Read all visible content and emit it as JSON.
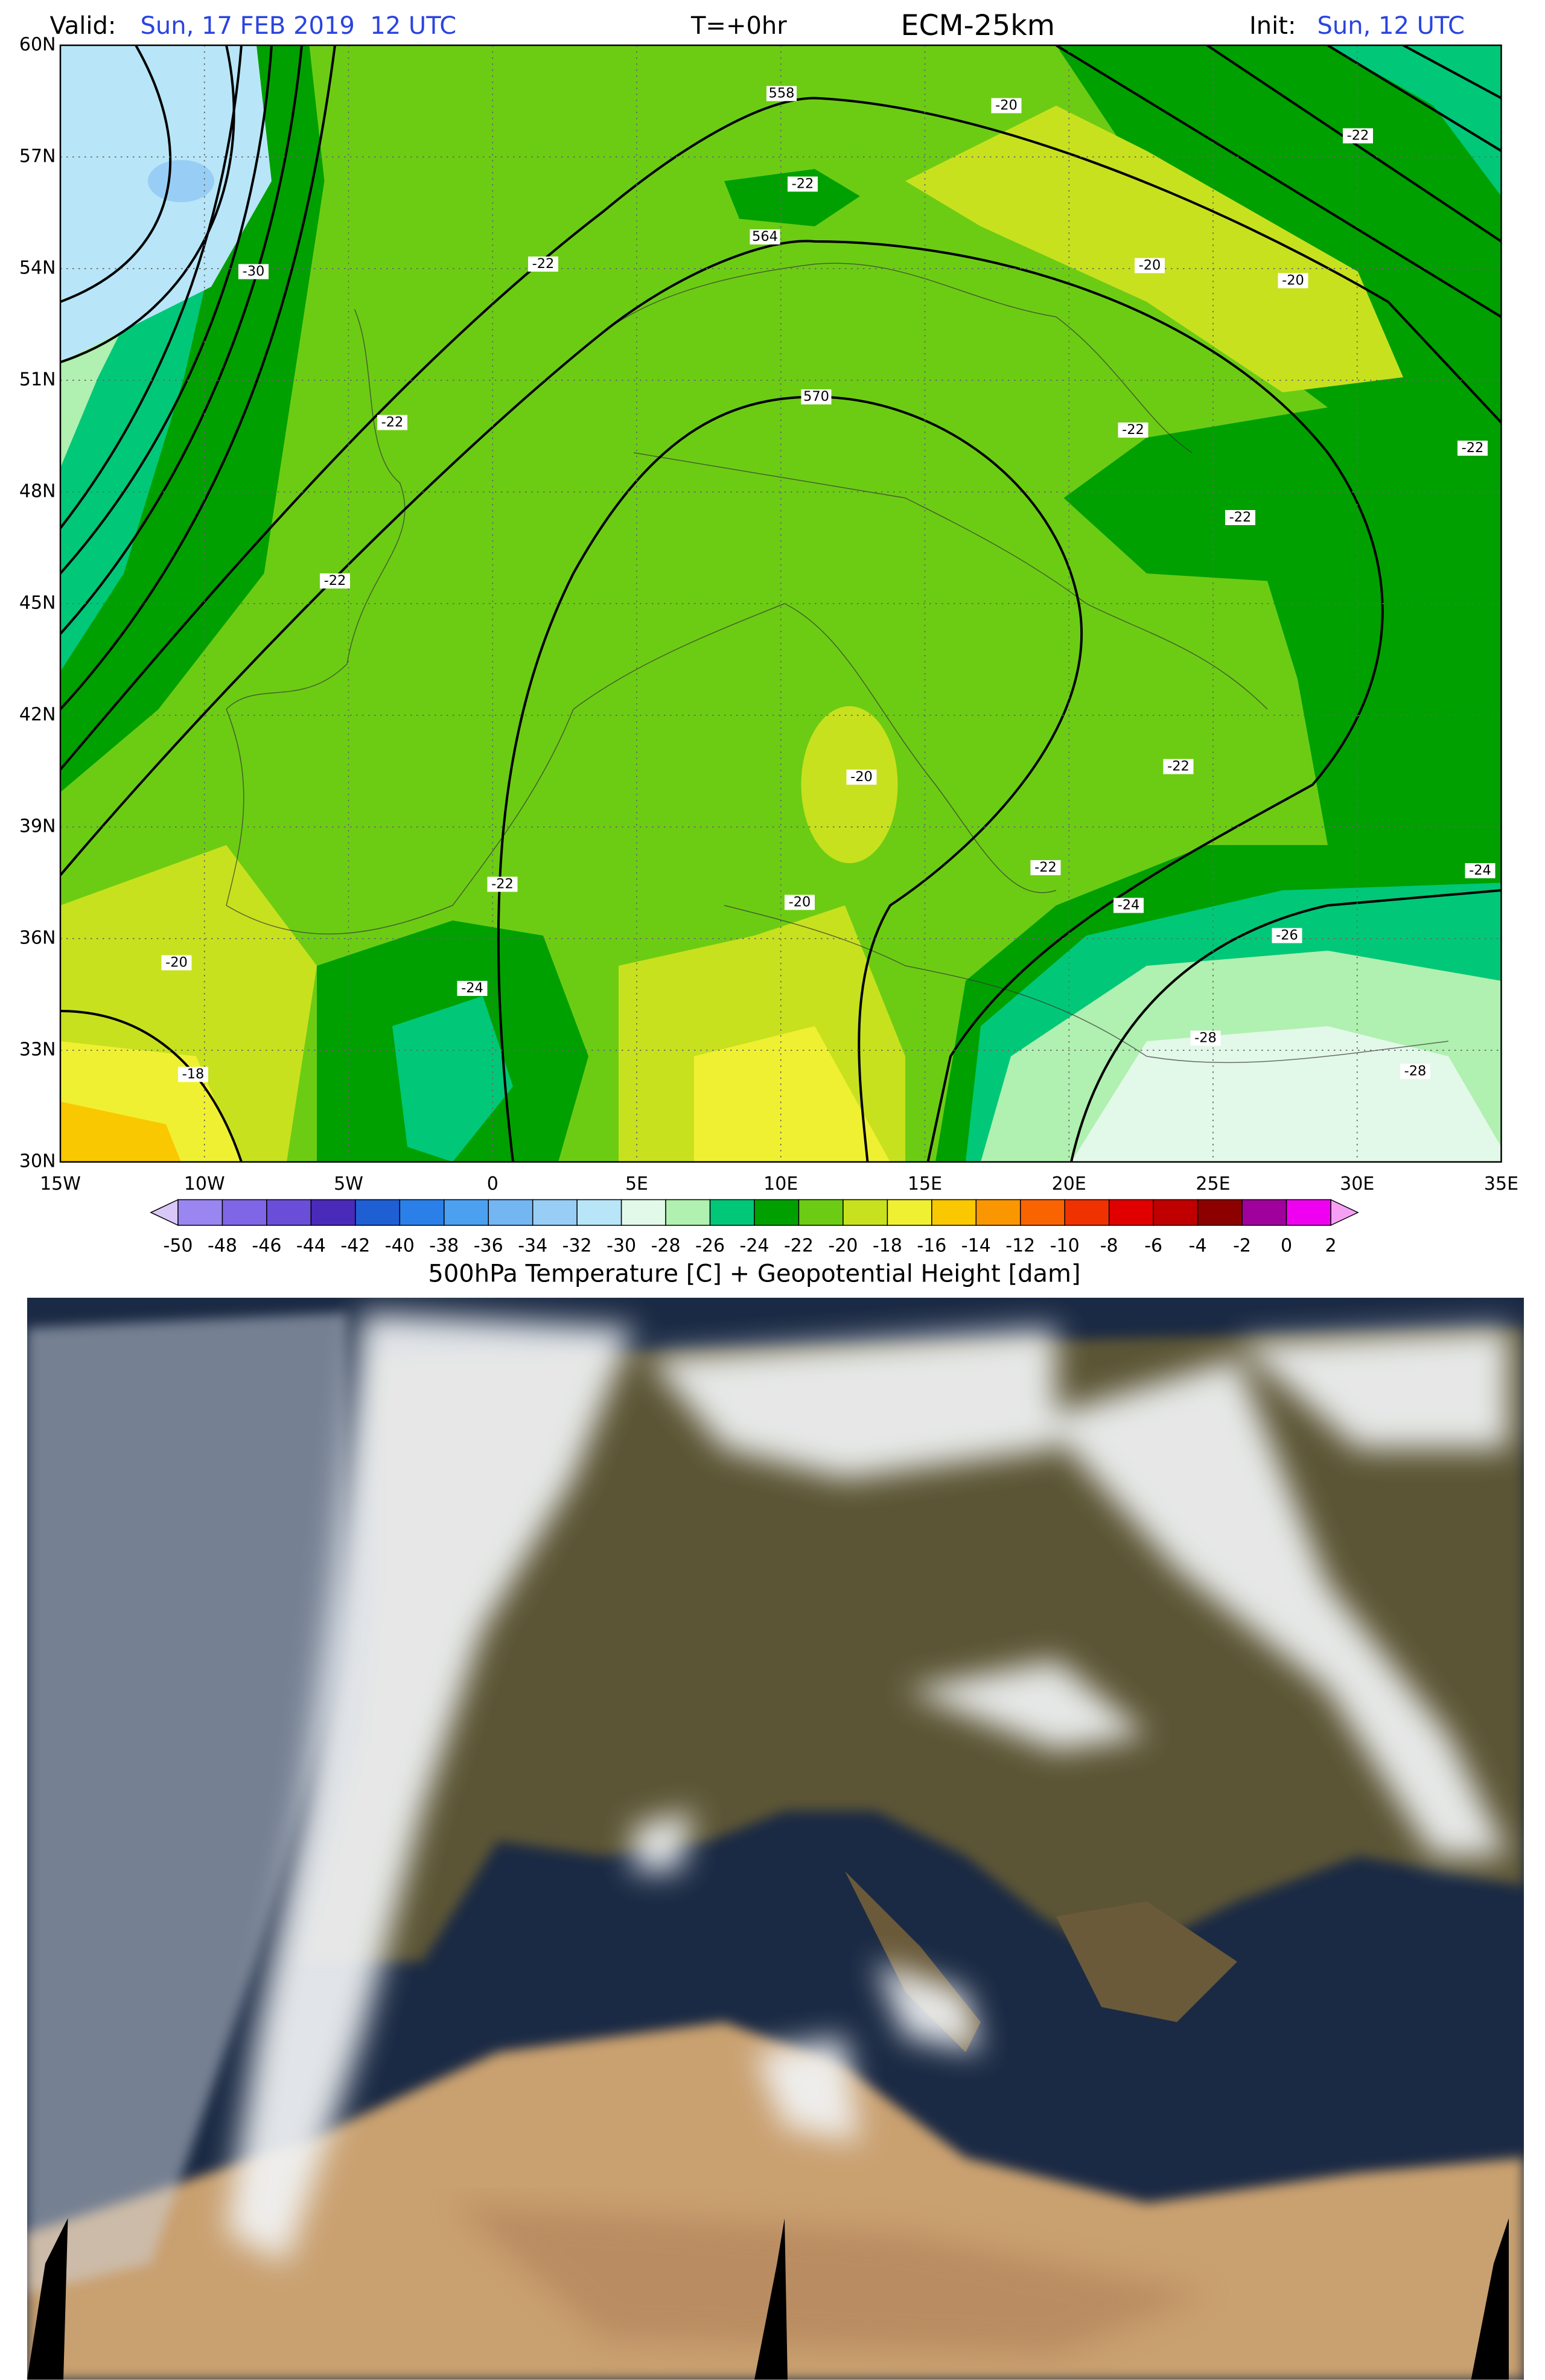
{
  "header": {
    "valid_label": "Valid:",
    "valid_time": "Sun, 17 FEB 2019  12 UTC",
    "step": "T=+0hr",
    "model": "ECM-25km",
    "init_label": "Init:",
    "init_time": "Sun, 12 UTC"
  },
  "map": {
    "lat_ticks": [
      "60N",
      "57N",
      "54N",
      "51N",
      "48N",
      "45N",
      "42N",
      "39N",
      "36N",
      "33N",
      "30N"
    ],
    "lon_ticks": [
      "15W",
      "10W",
      "5W",
      "0",
      "5E",
      "10E",
      "15E",
      "20E",
      "25E",
      "30E",
      "35E"
    ],
    "contour_labels": [
      558,
      -20,
      -22,
      -22,
      564,
      -22,
      -20,
      -20,
      -30,
      570,
      -22,
      -22,
      -22,
      -22,
      -22,
      -20,
      -22,
      -22,
      -24,
      -22,
      -20,
      -24,
      -26,
      -20,
      -24,
      -28,
      -18,
      -28
    ]
  },
  "colorbar": {
    "levels": [
      -50,
      -48,
      -46,
      -44,
      -42,
      -40,
      -38,
      -36,
      -34,
      -32,
      -30,
      -28,
      -26,
      -24,
      -22,
      -20,
      -18,
      -16,
      -14,
      -12,
      -10,
      -8,
      -6,
      -4,
      -2,
      0,
      2
    ],
    "colors": [
      "#9a86f0",
      "#7f66e6",
      "#6a4ed8",
      "#4a2ab8",
      "#1f5fd4",
      "#2a80e8",
      "#4ca0f0",
      "#74b6f2",
      "#98cef5",
      "#b8e6f8",
      "#e2f8e8",
      "#b0f0b0",
      "#00c878",
      "#00a000",
      "#6ccc14",
      "#c8e11e",
      "#f0f032",
      "#fac800",
      "#fa9600",
      "#fa6400",
      "#f03200",
      "#e00000",
      "#c00000",
      "#8c0000",
      "#a0009c",
      "#f000f0"
    ],
    "under_color": "#d8c8f8",
    "over_color": "#f5a0f5"
  },
  "caption": "500hPa Temperature [C] + Geopotential Height [dam]"
}
